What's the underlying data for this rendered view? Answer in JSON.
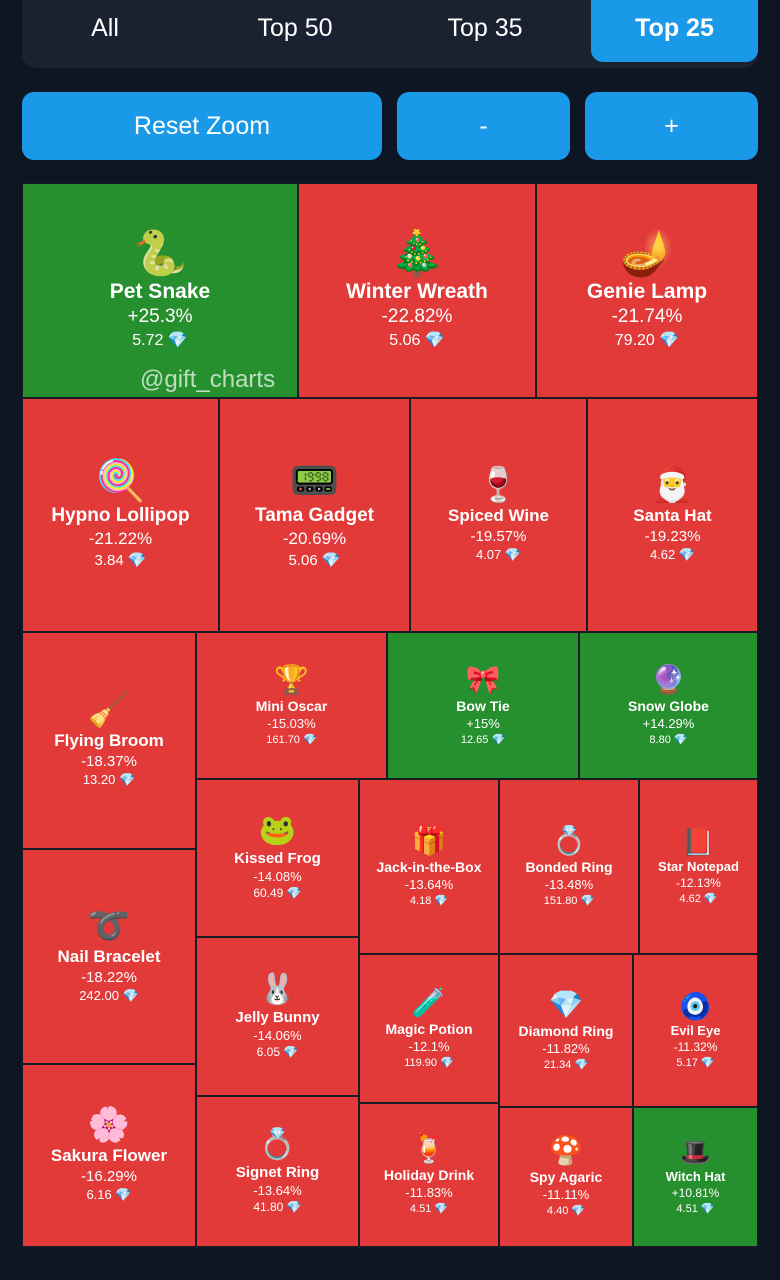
{
  "tabs": [
    {
      "label": "All",
      "active": false
    },
    {
      "label": "Top 50",
      "active": false
    },
    {
      "label": "Top 35",
      "active": false
    },
    {
      "label": "Top 25",
      "active": true
    }
  ],
  "buttons": {
    "reset": "Reset Zoom",
    "zoom_out": "-",
    "zoom_in": "+"
  },
  "watermark": "@gift_charts",
  "tiles": [
    {
      "name": "Pet Snake",
      "change": "+25.3%",
      "price": "5.72",
      "gem": "💎",
      "icon": "🐍",
      "icon_name": "snake-icon",
      "trend": "up"
    },
    {
      "name": "Winter Wreath",
      "change": "-22.82%",
      "price": "5.06",
      "gem": "💎",
      "icon": "🎄",
      "icon_name": "wreath-icon",
      "trend": "down"
    },
    {
      "name": "Genie Lamp",
      "change": "-21.74%",
      "price": "79.20",
      "gem": "💎",
      "icon": "🪔",
      "icon_name": "lamp-icon",
      "trend": "down"
    },
    {
      "name": "Hypno Lollipop",
      "change": "-21.22%",
      "price": "3.84",
      "gem": "💎",
      "icon": "🍭",
      "icon_name": "lollipop-icon",
      "trend": "down"
    },
    {
      "name": "Tama Gadget",
      "change": "-20.69%",
      "price": "5.06",
      "gem": "💎",
      "icon": "📟",
      "icon_name": "gadget-icon",
      "trend": "down"
    },
    {
      "name": "Spiced Wine",
      "change": "-19.57%",
      "price": "4.07",
      "gem": "💎",
      "icon": "🍷",
      "icon_name": "wine-icon",
      "trend": "down"
    },
    {
      "name": "Santa Hat",
      "change": "-19.23%",
      "price": "4.62",
      "gem": "💎",
      "icon": "🎅",
      "icon_name": "santa-hat-icon",
      "trend": "down"
    },
    {
      "name": "Flying Broom",
      "change": "-18.37%",
      "price": "13.20",
      "gem": "💎",
      "icon": "🧹",
      "icon_name": "broom-icon",
      "trend": "down"
    },
    {
      "name": "Mini Oscar",
      "change": "-15.03%",
      "price": "161.70",
      "gem": "💎",
      "icon": "🏆",
      "icon_name": "oscar-icon",
      "trend": "down"
    },
    {
      "name": "Bow Tie",
      "change": "+15%",
      "price": "12.65",
      "gem": "💎",
      "icon": "🎀",
      "icon_name": "bow-tie-icon",
      "trend": "up"
    },
    {
      "name": "Snow Globe",
      "change": "+14.29%",
      "price": "8.80",
      "gem": "💎",
      "icon": "🔮",
      "icon_name": "snow-globe-icon",
      "trend": "up"
    },
    {
      "name": "Kissed Frog",
      "change": "-14.08%",
      "price": "60.49",
      "gem": "💎",
      "icon": "🐸",
      "icon_name": "frog-icon",
      "trend": "down"
    },
    {
      "name": "Jack-in-the-Box",
      "change": "-13.64%",
      "price": "4.18",
      "gem": "💎",
      "icon": "🎁",
      "icon_name": "jack-box-icon",
      "trend": "down"
    },
    {
      "name": "Bonded Ring",
      "change": "-13.48%",
      "price": "151.80",
      "gem": "💎",
      "icon": "💍",
      "icon_name": "ring-icon",
      "trend": "down"
    },
    {
      "name": "Star Notepad",
      "change": "-12.13%",
      "price": "4.62",
      "gem": "💎",
      "icon": "📕",
      "icon_name": "notepad-icon",
      "trend": "down"
    },
    {
      "name": "Nail Bracelet",
      "change": "-18.22%",
      "price": "242.00",
      "gem": "💎",
      "icon": "➰",
      "icon_name": "bracelet-icon",
      "trend": "down"
    },
    {
      "name": "Jelly Bunny",
      "change": "-14.06%",
      "price": "6.05",
      "gem": "💎",
      "icon": "🐰",
      "icon_name": "bunny-icon",
      "trend": "down"
    },
    {
      "name": "Magic Potion",
      "change": "-12.1%",
      "price": "119.90",
      "gem": "💎",
      "icon": "🧪",
      "icon_name": "potion-icon",
      "trend": "down"
    },
    {
      "name": "Diamond Ring",
      "change": "-11.82%",
      "price": "21.34",
      "gem": "💎",
      "icon": "💎",
      "icon_name": "diamond-ring-icon",
      "trend": "down"
    },
    {
      "name": "Evil Eye",
      "change": "-11.32%",
      "price": "5.17",
      "gem": "💎",
      "icon": "🧿",
      "icon_name": "evil-eye-icon",
      "trend": "down"
    },
    {
      "name": "Sakura Flower",
      "change": "-16.29%",
      "price": "6.16",
      "gem": "💎",
      "icon": "🌸",
      "icon_name": "sakura-icon",
      "trend": "down"
    },
    {
      "name": "Signet Ring",
      "change": "-13.64%",
      "price": "41.80",
      "gem": "💎",
      "icon": "💍",
      "icon_name": "signet-ring-icon",
      "trend": "down"
    },
    {
      "name": "Holiday Drink",
      "change": "-11.83%",
      "price": "4.51",
      "gem": "💎",
      "icon": "🍹",
      "icon_name": "drink-icon",
      "trend": "down"
    },
    {
      "name": "Spy Agaric",
      "change": "-11.11%",
      "price": "4.40",
      "gem": "💎",
      "icon": "🍄",
      "icon_name": "mushroom-icon",
      "trend": "down"
    },
    {
      "name": "Witch Hat",
      "change": "+10.81%",
      "price": "4.51",
      "gem": "💎",
      "icon": "🎩",
      "icon_name": "witch-hat-icon",
      "trend": "up"
    }
  ]
}
